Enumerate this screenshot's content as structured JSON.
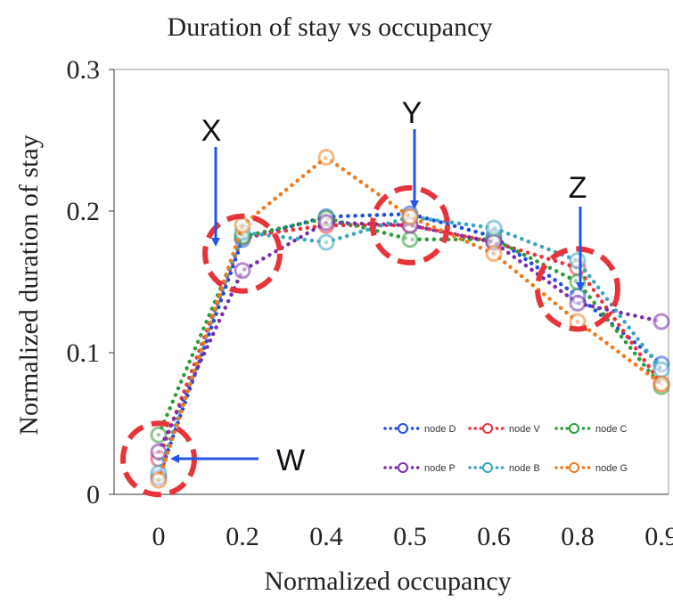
{
  "chart_data": {
    "type": "line",
    "title": "Duration of stay vs occupancy",
    "xlabel": "Normalized occupancy",
    "ylabel": "Normalized duration of stay",
    "categories": [
      "0",
      "0.2",
      "0.4",
      "0.5",
      "0.6",
      "0.8",
      "0.9"
    ],
    "ylim": [
      0,
      0.3
    ],
    "yticks": [
      "0",
      "0.1",
      "0.2",
      "0.3"
    ],
    "grid": false,
    "legend_position": "bottom-right",
    "series": [
      {
        "name": "node D",
        "color": "#1f4fe0",
        "values": [
          0.012,
          0.18,
          0.196,
          0.198,
          0.182,
          0.14,
          0.092
        ]
      },
      {
        "name": "node V",
        "color": "#e8333a",
        "values": [
          0.025,
          0.182,
          0.19,
          0.19,
          0.178,
          0.16,
          0.078
        ]
      },
      {
        "name": "node C",
        "color": "#2e9a3a",
        "values": [
          0.042,
          0.182,
          0.195,
          0.18,
          0.18,
          0.15,
          0.076
        ]
      },
      {
        "name": "node P",
        "color": "#7b2ea8",
        "values": [
          0.03,
          0.158,
          0.192,
          0.19,
          0.178,
          0.135,
          0.122
        ]
      },
      {
        "name": "node B",
        "color": "#3aa6c0",
        "values": [
          0.015,
          0.185,
          0.178,
          0.196,
          0.188,
          0.165,
          0.088
        ]
      },
      {
        "name": "node G",
        "color": "#f07a1c",
        "values": [
          0.01,
          0.19,
          0.238,
          0.196,
          0.17,
          0.122,
          0.078
        ]
      }
    ],
    "annotations": [
      {
        "label": "W",
        "at_category": "0",
        "at_value": 0.025
      },
      {
        "label": "X",
        "at_category": "0.2",
        "at_value": 0.17
      },
      {
        "label": "Y",
        "at_category": "0.5",
        "at_value": 0.19
      },
      {
        "label": "Z",
        "at_category": "0.8",
        "at_value": 0.145
      }
    ],
    "annotation_style": {
      "circle_color": "#e8333a",
      "arrow_color": "#2355e6"
    }
  }
}
